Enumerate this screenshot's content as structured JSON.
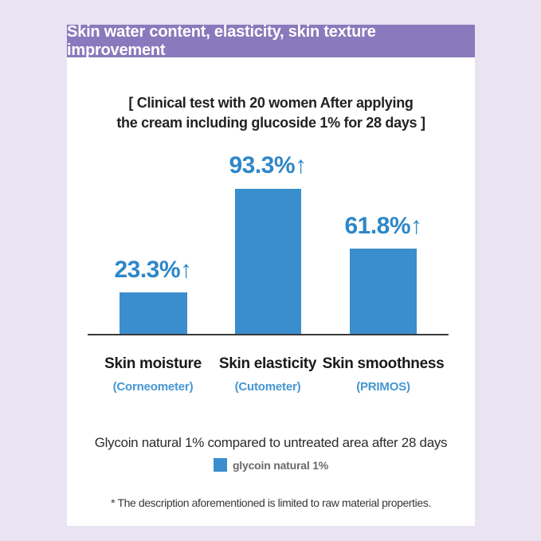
{
  "banner": {
    "title": "Skin water content, elasticity, skin texture improvement",
    "bg_color": "#8a79bc"
  },
  "subtitle": {
    "line1": "[ Clinical test with 20 women After applying",
    "line2": "the cream including glucoside 1% for 28 days ]"
  },
  "chart_data": {
    "type": "bar",
    "title": "Skin water content, elasticity, skin texture improvement",
    "subtitle": "[ Clinical test with 20 women After applying the cream including glucoside 1% for 28 days ]",
    "categories": [
      "Skin moisture",
      "Skin elasticity",
      "Skin smoothness"
    ],
    "instruments": [
      "(Corneometer)",
      "(Cutometer)",
      "(PRIMOS)"
    ],
    "values": [
      23.3,
      93.3,
      61.8
    ],
    "value_labels": [
      "23.3%↑",
      "93.3%↑",
      "61.8%↑"
    ],
    "unit": "% increase",
    "series": [
      {
        "name": "glycoin natural 1%",
        "values": [
          23.3,
          93.3,
          61.8
        ]
      }
    ],
    "bar_color": "#3a8ecd",
    "value_label_color": "#2e87c8",
    "grid": false,
    "legend_position": "bottom",
    "baseline_note": "Glycoin natural 1% compared to untreated area after 28 days"
  },
  "footer": {
    "comparison_note": "Glycoin natural 1% compared to untreated area after 28 days",
    "legend_label": "glycoin natural 1%",
    "footnote": "* The description aforementioned is limited to raw material properties."
  }
}
